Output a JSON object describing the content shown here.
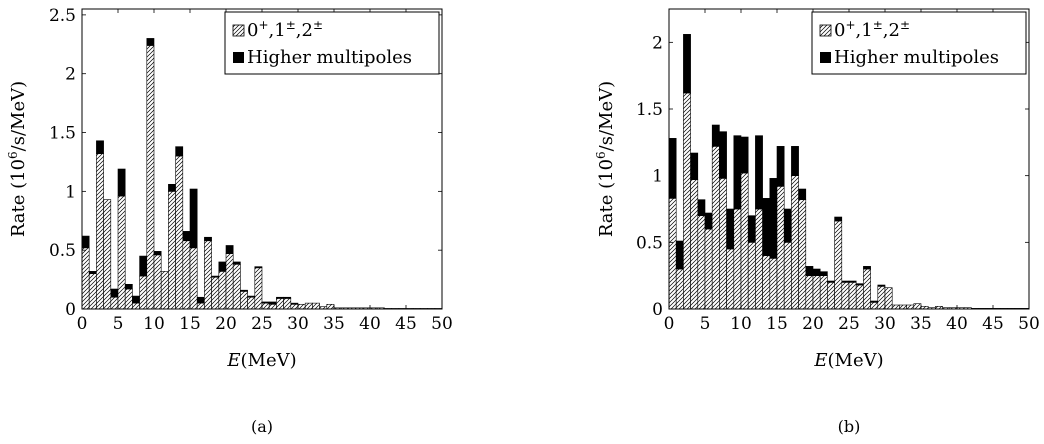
{
  "chart_data": [
    {
      "type": "bar",
      "stacked": true,
      "panel_label": "(a)",
      "xlabel": "E(MeV)",
      "ylabel": "Rate (10⁶/s/MeV)",
      "xlim": [
        0,
        50
      ],
      "ylim": [
        0,
        2.55
      ],
      "xticks": [
        "0",
        "5",
        "10",
        "15",
        "20",
        "25",
        "30",
        "35",
        "40",
        "45",
        "50"
      ],
      "yticks": [
        "0",
        "0.5",
        "1",
        "1.5",
        "2",
        "2.5"
      ],
      "grid": false,
      "legend_position": "top-right",
      "bin_width_mev": 1,
      "x": [
        0.5,
        1.5,
        2.5,
        3.5,
        4.5,
        5.5,
        6.5,
        7.5,
        8.5,
        9.5,
        10.5,
        11.5,
        12.5,
        13.5,
        14.5,
        15.5,
        16.5,
        17.5,
        18.5,
        19.5,
        20.5,
        21.5,
        22.5,
        23.5,
        24.5,
        25.5,
        26.5,
        27.5,
        28.5,
        29.5,
        30.5,
        31.5,
        32.5,
        33.5,
        34.5,
        35.5,
        36.5,
        37.5,
        38.5,
        39.5,
        40.5,
        41.5,
        42.5,
        43.5,
        44.5,
        45.5,
        46.5,
        47.5,
        48.5,
        49.5
      ],
      "series": [
        {
          "name": "0⁺,1^±,2^±",
          "pattern": "hatched",
          "values": [
            0.52,
            0.3,
            1.32,
            0.93,
            0.1,
            0.96,
            0.17,
            0.05,
            0.28,
            2.24,
            0.46,
            0.32,
            1.0,
            1.3,
            0.58,
            0.52,
            0.05,
            0.58,
            0.27,
            0.32,
            0.47,
            0.38,
            0.15,
            0.1,
            0.35,
            0.05,
            0.04,
            0.09,
            0.09,
            0.04,
            0.04,
            0.05,
            0.05,
            0.02,
            0.04,
            0.01,
            0.01,
            0.01,
            0.01,
            0.01,
            0.01,
            0.01,
            0.005,
            0.005,
            0.005,
            0.005,
            0.005,
            0.005,
            0.005,
            0.005
          ]
        },
        {
          "name": "Higher multipoles",
          "pattern": "solid",
          "color": "#000000",
          "values": [
            0.1,
            0.02,
            0.11,
            0.0,
            0.07,
            0.23,
            0.04,
            0.06,
            0.17,
            0.06,
            0.03,
            0.0,
            0.06,
            0.08,
            0.08,
            0.5,
            0.05,
            0.03,
            0.01,
            0.08,
            0.07,
            0.02,
            0.01,
            0.01,
            0.01,
            0.01,
            0.02,
            0.01,
            0.01,
            0.01,
            0.0,
            0.0,
            0.0,
            0.0,
            0.0,
            0.0,
            0.0,
            0.0,
            0.0,
            0.0,
            0.0,
            0.0,
            0.0,
            0.0,
            0.0,
            0.0,
            0.0,
            0.0,
            0.0,
            0.0
          ]
        }
      ]
    },
    {
      "type": "bar",
      "stacked": true,
      "panel_label": "(b)",
      "xlabel": "E(MeV)",
      "ylabel": "Rate (10⁶/s/MeV)",
      "xlim": [
        0,
        50
      ],
      "ylim": [
        0,
        2.25
      ],
      "xticks": [
        "0",
        "5",
        "10",
        "15",
        "20",
        "25",
        "30",
        "35",
        "40",
        "45",
        "50"
      ],
      "yticks": [
        "0",
        "0.5",
        "1",
        "1.5",
        "2"
      ],
      "grid": false,
      "legend_position": "top-right",
      "bin_width_mev": 1,
      "x": [
        0.5,
        1.5,
        2.5,
        3.5,
        4.5,
        5.5,
        6.5,
        7.5,
        8.5,
        9.5,
        10.5,
        11.5,
        12.5,
        13.5,
        14.5,
        15.5,
        16.5,
        17.5,
        18.5,
        19.5,
        20.5,
        21.5,
        22.5,
        23.5,
        24.5,
        25.5,
        26.5,
        27.5,
        28.5,
        29.5,
        30.5,
        31.5,
        32.5,
        33.5,
        34.5,
        35.5,
        36.5,
        37.5,
        38.5,
        39.5,
        40.5,
        41.5,
        42.5,
        43.5,
        44.5,
        45.5,
        46.5,
        47.5,
        48.5,
        49.5
      ],
      "series": [
        {
          "name": "0⁺,1^±,2^±",
          "pattern": "hatched",
          "values": [
            0.83,
            0.3,
            1.62,
            0.97,
            0.7,
            0.6,
            1.22,
            0.98,
            0.45,
            0.75,
            1.02,
            0.5,
            0.75,
            0.4,
            0.38,
            0.92,
            0.5,
            1.0,
            0.82,
            0.25,
            0.25,
            0.25,
            0.2,
            0.66,
            0.2,
            0.2,
            0.18,
            0.3,
            0.05,
            0.17,
            0.16,
            0.03,
            0.03,
            0.03,
            0.04,
            0.02,
            0.01,
            0.02,
            0.01,
            0.01,
            0.01,
            0.01,
            0.005,
            0.005,
            0.005,
            0.005,
            0.005,
            0.005,
            0.005,
            0.005
          ]
        },
        {
          "name": "Higher multipoles",
          "pattern": "solid",
          "color": "#000000",
          "values": [
            0.45,
            0.21,
            0.44,
            0.2,
            0.12,
            0.12,
            0.16,
            0.35,
            0.3,
            0.55,
            0.27,
            0.2,
            0.55,
            0.43,
            0.6,
            0.3,
            0.25,
            0.22,
            0.08,
            0.07,
            0.05,
            0.03,
            0.01,
            0.03,
            0.01,
            0.01,
            0.01,
            0.02,
            0.01,
            0.01,
            0.0,
            0.0,
            0.0,
            0.0,
            0.0,
            0.0,
            0.0,
            0.0,
            0.0,
            0.0,
            0.0,
            0.0,
            0.0,
            0.0,
            0.0,
            0.0,
            0.0,
            0.0,
            0.0,
            0.0
          ]
        }
      ]
    }
  ],
  "legend": {
    "hatched_label_base": "0",
    "hatched_sup_1": "+",
    "hatched_mid": ",1",
    "hatched_sup_2": "±",
    "hatched_mid_2": ",2",
    "hatched_sup_3": "±",
    "solid_label": "Higher multipoles"
  },
  "axis_text": {
    "xlabel_italic": "E",
    "xlabel_rest": "(MeV)",
    "ylabel_pre": "Rate (10",
    "ylabel_sup": "6",
    "ylabel_post": "/s/MeV)"
  }
}
